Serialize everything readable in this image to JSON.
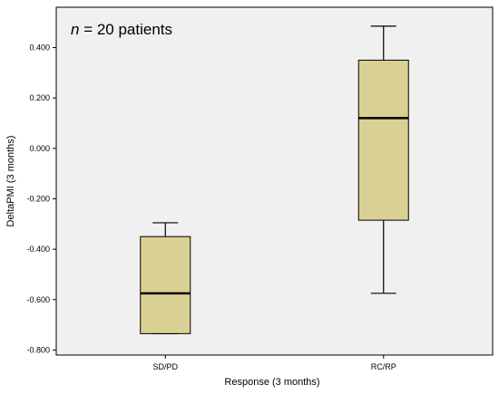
{
  "chart_data": {
    "type": "boxplot",
    "annotation": {
      "n_symbol": "n",
      "rest": " = 20 patients"
    },
    "xlabel": "Response (3 months)",
    "ylabel": "DeltaPMI (3 months)",
    "categories": [
      "SD/PD",
      "RC/RP"
    ],
    "boxes": [
      {
        "category": "SD/PD",
        "whisker_low": -0.735,
        "q1": -0.735,
        "median": -0.575,
        "q3": -0.35,
        "whisker_high": -0.295
      },
      {
        "category": "RC/RP",
        "whisker_low": -0.575,
        "q1": -0.285,
        "median": 0.12,
        "q3": 0.35,
        "whisker_high": 0.485
      }
    ],
    "ylim": [
      -0.82,
      0.56
    ],
    "yticks": [
      0.4,
      0.2,
      0.0,
      -0.2,
      -0.4,
      -0.6,
      -0.8
    ],
    "ytick_labels": [
      "0.400",
      "0.200",
      "0.000",
      "-0.200",
      "-0.400",
      "-0.600",
      "-0.800"
    ],
    "box_fill": "#d9d193",
    "plot_background": "#f0f0f0",
    "grid": false
  }
}
